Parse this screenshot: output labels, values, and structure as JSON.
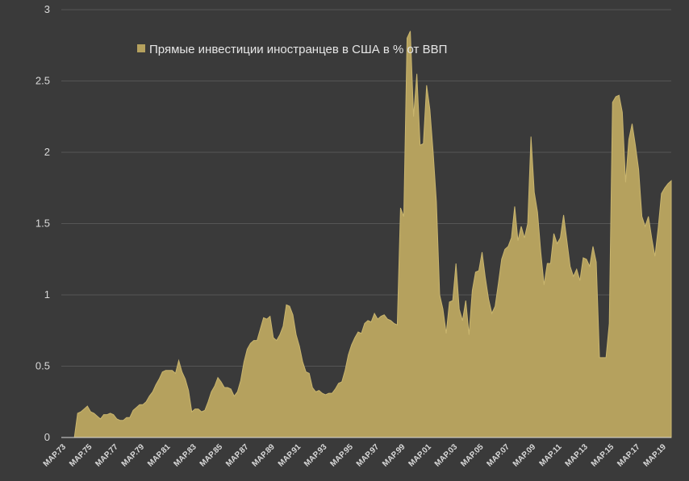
{
  "chart_data": {
    "type": "area",
    "legend": {
      "label": "Прямые инвестиции иностранцев в США в %  от ВВП",
      "placement": "top-left"
    },
    "colors": {
      "background": "#3a3a3a",
      "area_fill": "#b5a15e",
      "area_stroke": "#c9b56e",
      "gridline": "#555555",
      "axis": "#d9d9d9",
      "text": "#d9d9d9"
    },
    "grid": true,
    "ylim": [
      0,
      3
    ],
    "yticks": [
      "0",
      "0.5",
      "1",
      "1.5",
      "2",
      "2.5",
      "3"
    ],
    "xlim": [
      1973.0,
      2019.75
    ],
    "xticks": [
      {
        "label": "MAP.73",
        "x": 1973.0
      },
      {
        "label": "MAP.75",
        "x": 1975.0
      },
      {
        "label": "MAP.77",
        "x": 1977.0
      },
      {
        "label": "MAP.79",
        "x": 1979.0
      },
      {
        "label": "MAP.81",
        "x": 1981.0
      },
      {
        "label": "MAP.83",
        "x": 1983.0
      },
      {
        "label": "MAP.85",
        "x": 1985.0
      },
      {
        "label": "MAP.87",
        "x": 1987.0
      },
      {
        "label": "MAP.89",
        "x": 1989.0
      },
      {
        "label": "MAP.91",
        "x": 1991.0
      },
      {
        "label": "MAP.93",
        "x": 1993.0
      },
      {
        "label": "MAP.95",
        "x": 1995.0
      },
      {
        "label": "MAP.97",
        "x": 1997.0
      },
      {
        "label": "MAP.99",
        "x": 1999.0
      },
      {
        "label": "MAP.01",
        "x": 2001.0
      },
      {
        "label": "MAP.03",
        "x": 2003.0
      },
      {
        "label": "MAP.05",
        "x": 2005.0
      },
      {
        "label": "MAP.07",
        "x": 2007.0
      },
      {
        "label": "MAP.09",
        "x": 2009.0
      },
      {
        "label": "MAP.11",
        "x": 2011.0
      },
      {
        "label": "MAP.13",
        "x": 2013.0
      },
      {
        "label": "MAP.15",
        "x": 2015.0
      },
      {
        "label": "MAP.17",
        "x": 2017.0
      },
      {
        "label": "MAP.19",
        "x": 2019.0
      }
    ],
    "series": [
      {
        "name": "Прямые инвестиции иностранцев в США в %  от ВВП",
        "points": [
          [
            1973.0,
            0.0
          ],
          [
            1974.0,
            0.0
          ],
          [
            1974.25,
            0.17
          ],
          [
            1974.5,
            0.18
          ],
          [
            1974.75,
            0.2
          ],
          [
            1975.0,
            0.22
          ],
          [
            1975.25,
            0.18
          ],
          [
            1975.5,
            0.17
          ],
          [
            1975.75,
            0.15
          ],
          [
            1976.0,
            0.13
          ],
          [
            1976.25,
            0.16
          ],
          [
            1976.5,
            0.16
          ],
          [
            1976.75,
            0.17
          ],
          [
            1977.0,
            0.16
          ],
          [
            1977.25,
            0.13
          ],
          [
            1977.5,
            0.12
          ],
          [
            1977.75,
            0.12
          ],
          [
            1978.0,
            0.14
          ],
          [
            1978.25,
            0.14
          ],
          [
            1978.5,
            0.19
          ],
          [
            1978.75,
            0.21
          ],
          [
            1979.0,
            0.23
          ],
          [
            1979.25,
            0.23
          ],
          [
            1979.5,
            0.25
          ],
          [
            1979.75,
            0.29
          ],
          [
            1980.0,
            0.32
          ],
          [
            1980.25,
            0.37
          ],
          [
            1980.5,
            0.41
          ],
          [
            1980.75,
            0.46
          ],
          [
            1981.0,
            0.47
          ],
          [
            1981.25,
            0.47
          ],
          [
            1981.5,
            0.47
          ],
          [
            1981.75,
            0.45
          ],
          [
            1982.0,
            0.54
          ],
          [
            1982.25,
            0.46
          ],
          [
            1982.5,
            0.41
          ],
          [
            1982.75,
            0.33
          ],
          [
            1983.0,
            0.18
          ],
          [
            1983.25,
            0.2
          ],
          [
            1983.5,
            0.2
          ],
          [
            1983.75,
            0.18
          ],
          [
            1984.0,
            0.19
          ],
          [
            1984.25,
            0.25
          ],
          [
            1984.5,
            0.32
          ],
          [
            1984.75,
            0.36
          ],
          [
            1985.0,
            0.42
          ],
          [
            1985.25,
            0.39
          ],
          [
            1985.5,
            0.35
          ],
          [
            1985.75,
            0.35
          ],
          [
            1986.0,
            0.34
          ],
          [
            1986.25,
            0.29
          ],
          [
            1986.5,
            0.32
          ],
          [
            1986.75,
            0.4
          ],
          [
            1987.0,
            0.53
          ],
          [
            1987.25,
            0.62
          ],
          [
            1987.5,
            0.66
          ],
          [
            1987.75,
            0.68
          ],
          [
            1988.0,
            0.68
          ],
          [
            1988.25,
            0.76
          ],
          [
            1988.5,
            0.84
          ],
          [
            1988.75,
            0.83
          ],
          [
            1989.0,
            0.85
          ],
          [
            1989.25,
            0.7
          ],
          [
            1989.5,
            0.68
          ],
          [
            1989.75,
            0.72
          ],
          [
            1990.0,
            0.78
          ],
          [
            1990.25,
            0.93
          ],
          [
            1990.5,
            0.92
          ],
          [
            1990.75,
            0.86
          ],
          [
            1991.0,
            0.72
          ],
          [
            1991.25,
            0.64
          ],
          [
            1991.5,
            0.53
          ],
          [
            1991.75,
            0.46
          ],
          [
            1992.0,
            0.45
          ],
          [
            1992.25,
            0.35
          ],
          [
            1992.5,
            0.32
          ],
          [
            1992.75,
            0.33
          ],
          [
            1993.0,
            0.31
          ],
          [
            1993.25,
            0.3
          ],
          [
            1993.5,
            0.31
          ],
          [
            1993.75,
            0.31
          ],
          [
            1994.0,
            0.34
          ],
          [
            1994.25,
            0.38
          ],
          [
            1994.5,
            0.39
          ],
          [
            1994.75,
            0.47
          ],
          [
            1995.0,
            0.58
          ],
          [
            1995.25,
            0.65
          ],
          [
            1995.5,
            0.7
          ],
          [
            1995.75,
            0.74
          ],
          [
            1996.0,
            0.73
          ],
          [
            1996.25,
            0.8
          ],
          [
            1996.5,
            0.82
          ],
          [
            1996.75,
            0.81
          ],
          [
            1997.0,
            0.87
          ],
          [
            1997.25,
            0.83
          ],
          [
            1997.5,
            0.85
          ],
          [
            1997.75,
            0.86
          ],
          [
            1998.0,
            0.83
          ],
          [
            1998.25,
            0.82
          ],
          [
            1998.5,
            0.8
          ],
          [
            1998.75,
            0.79
          ],
          [
            1999.0,
            1.61
          ],
          [
            1999.25,
            1.55
          ],
          [
            1999.5,
            2.8
          ],
          [
            1999.75,
            2.85
          ],
          [
            2000.0,
            2.25
          ],
          [
            2000.25,
            2.55
          ],
          [
            2000.5,
            2.05
          ],
          [
            2000.75,
            2.06
          ],
          [
            2001.0,
            2.47
          ],
          [
            2001.25,
            2.3
          ],
          [
            2001.5,
            2.0
          ],
          [
            2001.75,
            1.65
          ],
          [
            2002.0,
            1.0
          ],
          [
            2002.25,
            0.9
          ],
          [
            2002.5,
            0.73
          ],
          [
            2002.75,
            0.95
          ],
          [
            2003.0,
            0.96
          ],
          [
            2003.25,
            1.22
          ],
          [
            2003.5,
            0.9
          ],
          [
            2003.75,
            0.82
          ],
          [
            2004.0,
            0.96
          ],
          [
            2004.25,
            0.72
          ],
          [
            2004.5,
            1.03
          ],
          [
            2004.75,
            1.16
          ],
          [
            2005.0,
            1.17
          ],
          [
            2005.25,
            1.3
          ],
          [
            2005.5,
            1.12
          ],
          [
            2005.75,
            0.97
          ],
          [
            2006.0,
            0.87
          ],
          [
            2006.25,
            0.92
          ],
          [
            2006.5,
            1.08
          ],
          [
            2006.75,
            1.25
          ],
          [
            2007.0,
            1.32
          ],
          [
            2007.25,
            1.34
          ],
          [
            2007.5,
            1.4
          ],
          [
            2007.75,
            1.62
          ],
          [
            2008.0,
            1.38
          ],
          [
            2008.25,
            1.48
          ],
          [
            2008.5,
            1.4
          ],
          [
            2008.75,
            1.5
          ],
          [
            2009.0,
            2.11
          ],
          [
            2009.25,
            1.72
          ],
          [
            2009.5,
            1.58
          ],
          [
            2009.75,
            1.3
          ],
          [
            2010.0,
            1.07
          ],
          [
            2010.25,
            1.22
          ],
          [
            2010.5,
            1.22
          ],
          [
            2010.75,
            1.43
          ],
          [
            2011.0,
            1.36
          ],
          [
            2011.25,
            1.4
          ],
          [
            2011.5,
            1.56
          ],
          [
            2011.75,
            1.38
          ],
          [
            2012.0,
            1.2
          ],
          [
            2012.25,
            1.13
          ],
          [
            2012.5,
            1.18
          ],
          [
            2012.75,
            1.1
          ],
          [
            2013.0,
            1.26
          ],
          [
            2013.25,
            1.25
          ],
          [
            2013.5,
            1.2
          ],
          [
            2013.75,
            1.34
          ],
          [
            2014.0,
            1.23
          ],
          [
            2014.25,
            0.56
          ],
          [
            2014.5,
            0.56
          ],
          [
            2014.75,
            0.56
          ],
          [
            2015.0,
            0.8
          ],
          [
            2015.25,
            2.35
          ],
          [
            2015.5,
            2.39
          ],
          [
            2015.75,
            2.4
          ],
          [
            2016.0,
            2.28
          ],
          [
            2016.25,
            1.79
          ],
          [
            2016.5,
            2.09
          ],
          [
            2016.75,
            2.2
          ],
          [
            2017.0,
            2.05
          ],
          [
            2017.25,
            1.88
          ],
          [
            2017.5,
            1.55
          ],
          [
            2017.75,
            1.48
          ],
          [
            2018.0,
            1.55
          ],
          [
            2018.25,
            1.4
          ],
          [
            2018.5,
            1.27
          ],
          [
            2018.75,
            1.47
          ],
          [
            2019.0,
            1.71
          ],
          [
            2019.25,
            1.75
          ],
          [
            2019.5,
            1.78
          ],
          [
            2019.75,
            1.8
          ]
        ]
      }
    ]
  }
}
